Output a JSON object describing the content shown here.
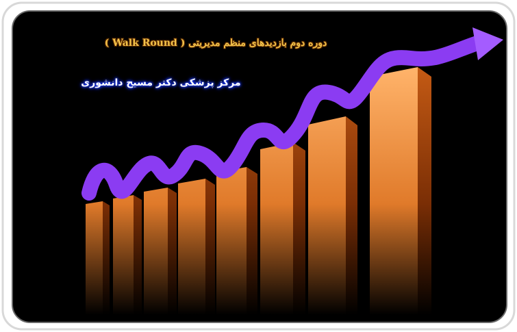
{
  "header": {
    "title": "دوره دوم بازدیدهای منظم مدیریتی ( Walk Round )",
    "subtitle": "مرکز پزشکی دکتر مسیح دانشوری"
  }
}
